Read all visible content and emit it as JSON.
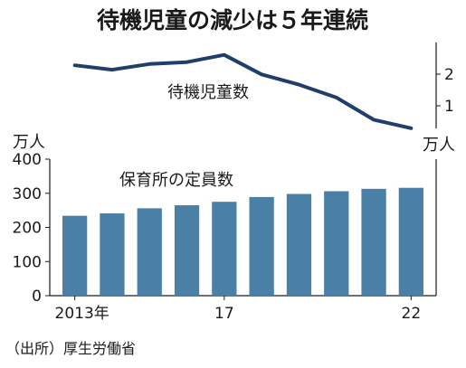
{
  "chart_data": {
    "title": "待機児童の減少は５年連続",
    "source": "（出所）厚生労働省",
    "x_labels": [
      "2013年",
      "17",
      "22"
    ],
    "categories": [
      "2013",
      "2014",
      "2015",
      "2016",
      "2017",
      "2018",
      "2019",
      "2020",
      "2021",
      "2022"
    ],
    "line": {
      "type": "line",
      "name": "待機児童数",
      "unit": "万人",
      "values": [
        2.28,
        2.14,
        2.32,
        2.38,
        2.61,
        1.99,
        1.67,
        1.26,
        0.56,
        0.29
      ],
      "ylim": [
        0,
        3
      ],
      "yticks": [
        "1",
        "2"
      ]
    },
    "bars": {
      "type": "bar",
      "name": "保育所の定員数",
      "unit": "万人",
      "values": [
        234,
        241,
        256,
        265,
        275,
        289,
        298,
        306,
        313,
        316
      ],
      "ylim": [
        0,
        400
      ],
      "yticks": [
        "0",
        "100",
        "200",
        "300",
        "400"
      ]
    }
  }
}
